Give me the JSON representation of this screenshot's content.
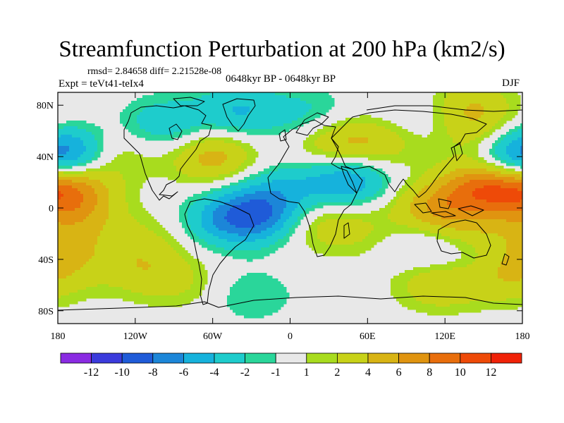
{
  "title": "Streamfunction Perturbation at 200 hPa (km2/s)",
  "stats": "rmsd= 2.84658 diff= 2.21528e-08",
  "experiment": "Expt = teVt41-teIx4",
  "period": "0648kyr BP - 0648kyr BP",
  "season": "DJF",
  "lat_ticks": [
    {
      "label": "80N",
      "value": 80
    },
    {
      "label": "40N",
      "value": 40
    },
    {
      "label": "0",
      "value": 0
    },
    {
      "label": "40S",
      "value": -40
    },
    {
      "label": "80S",
      "value": -80
    }
  ],
  "lon_ticks": [
    {
      "label": "180",
      "value": -180
    },
    {
      "label": "120W",
      "value": -120
    },
    {
      "label": "60W",
      "value": -60
    },
    {
      "label": "0",
      "value": 0
    },
    {
      "label": "60E",
      "value": 60
    },
    {
      "label": "120E",
      "value": 120
    },
    {
      "label": "180",
      "value": 180
    }
  ],
  "colorbar": {
    "colors": [
      "#8a2be2",
      "#3b3bdc",
      "#1f5bd8",
      "#1c86d8",
      "#16b2dc",
      "#1ecccc",
      "#2ad69a",
      "#e8e8e8",
      "#a8dc1e",
      "#c8d218",
      "#d8b414",
      "#e09410",
      "#e86e0c",
      "#ee4a08",
      "#f02208"
    ],
    "labels": [
      "-12",
      "-10",
      "-8",
      "-6",
      "-4",
      "-2",
      "-1",
      "1",
      "2",
      "4",
      "6",
      "8",
      "10",
      "12"
    ]
  },
  "chart_data": {
    "type": "heatmap",
    "title": "Streamfunction Perturbation at 200 hPa (km2/s)",
    "units": "km2/s",
    "x_range": [
      -180,
      180
    ],
    "y_range": [
      -90,
      90
    ],
    "contour_levels": [
      -12,
      -10,
      -8,
      -6,
      -4,
      -2,
      -1,
      1,
      2,
      4,
      6,
      8,
      10,
      12
    ],
    "anomaly_centers": [
      {
        "lon": -170,
        "lat": 41,
        "value": -5.5
      },
      {
        "lon": 175,
        "lat": 41,
        "value": -5.5
      },
      {
        "lon": -172,
        "lat": 18,
        "value": 7
      },
      {
        "lon": -165,
        "lat": -5,
        "value": 4
      },
      {
        "lon": -172,
        "lat": -35,
        "value": 3
      },
      {
        "lon": -140,
        "lat": 42,
        "value": 3
      },
      {
        "lon": -98,
        "lat": 65,
        "value": -3.5
      },
      {
        "lon": -60,
        "lat": 40,
        "value": 5
      },
      {
        "lon": -40,
        "lat": 75,
        "value": -4
      },
      {
        "lon": 15,
        "lat": 72,
        "value": -2.5
      },
      {
        "lon": -25,
        "lat": -5,
        "value": -7
      },
      {
        "lon": -52,
        "lat": -10,
        "value": -4
      },
      {
        "lon": -30,
        "lat": -68,
        "value": -2
      },
      {
        "lon": -112,
        "lat": -25,
        "value": 2
      },
      {
        "lon": -118,
        "lat": -48,
        "value": 2.5
      },
      {
        "lon": -85,
        "lat": -58,
        "value": 2
      },
      {
        "lon": 35,
        "lat": 50,
        "value": 4
      },
      {
        "lon": 70,
        "lat": 50,
        "value": 3
      },
      {
        "lon": 45,
        "lat": 22,
        "value": -6
      },
      {
        "lon": -5,
        "lat": 15,
        "value": -3
      },
      {
        "lon": 25,
        "lat": -12,
        "value": 3
      },
      {
        "lon": 60,
        "lat": -20,
        "value": 1.5
      },
      {
        "lon": 110,
        "lat": 0,
        "value": 5
      },
      {
        "lon": 150,
        "lat": 15,
        "value": 8
      },
      {
        "lon": 135,
        "lat": -20,
        "value": 3
      },
      {
        "lon": 100,
        "lat": -28,
        "value": -2
      },
      {
        "lon": 125,
        "lat": -35,
        "value": -2
      },
      {
        "lon": 115,
        "lat": -58,
        "value": 4
      },
      {
        "lon": 170,
        "lat": -55,
        "value": 3
      },
      {
        "lon": 140,
        "lat": 78,
        "value": 4
      },
      {
        "lon": 150,
        "lat": 52,
        "value": 3
      },
      {
        "lon": 100,
        "lat": 70,
        "value": -1.5
      }
    ]
  }
}
